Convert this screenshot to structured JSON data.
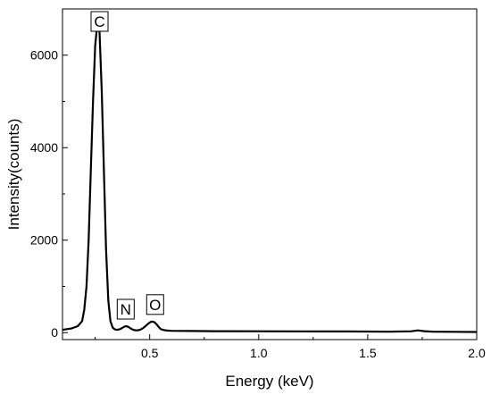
{
  "chart_data": {
    "type": "line",
    "title": "",
    "xlabel": "Energy (keV)",
    "ylabel": "Intensity(counts)",
    "xlim": [
      0.1,
      2.0
    ],
    "ylim": [
      -150,
      7000
    ],
    "x_ticks": [
      0.5,
      1.0,
      1.5,
      2.0
    ],
    "x_tick_labels": [
      "0.5",
      "1.0",
      "1.5",
      "2.0"
    ],
    "y_ticks": [
      0,
      2000,
      4000,
      6000
    ],
    "y_tick_labels": [
      "0",
      "2000",
      "4000",
      "6000"
    ],
    "grid": false,
    "legend": "none",
    "line_color": "#000000",
    "series": [
      {
        "x": [
          0.1,
          0.14,
          0.17,
          0.19,
          0.2,
          0.21,
          0.22,
          0.23,
          0.24,
          0.25,
          0.26,
          0.27,
          0.28,
          0.29,
          0.3,
          0.31,
          0.32,
          0.33,
          0.34,
          0.35,
          0.36,
          0.37,
          0.38,
          0.39,
          0.4,
          0.41,
          0.42,
          0.43,
          0.44,
          0.45,
          0.46,
          0.47,
          0.48,
          0.49,
          0.5,
          0.51,
          0.52,
          0.53,
          0.54,
          0.55,
          0.56,
          0.58,
          0.6,
          0.65,
          0.7,
          0.8,
          1.0,
          1.2,
          1.4,
          1.6,
          1.7,
          1.73,
          1.76,
          1.8,
          1.9,
          2.0
        ],
        "y": [
          60,
          90,
          140,
          250,
          500,
          1000,
          2000,
          3500,
          5000,
          6200,
          6700,
          6500,
          5200,
          3500,
          1800,
          700,
          250,
          110,
          70,
          60,
          70,
          90,
          120,
          140,
          130,
          100,
          70,
          55,
          50,
          55,
          70,
          100,
          140,
          180,
          220,
          240,
          230,
          190,
          130,
          80,
          60,
          45,
          40,
          38,
          35,
          32,
          30,
          28,
          25,
          22,
          30,
          50,
          32,
          22,
          18,
          15
        ]
      }
    ],
    "annotations": [
      {
        "text": "C",
        "x": 0.27
      },
      {
        "text": "N",
        "x": 0.39
      },
      {
        "text": "O",
        "x": 0.525
      }
    ]
  }
}
